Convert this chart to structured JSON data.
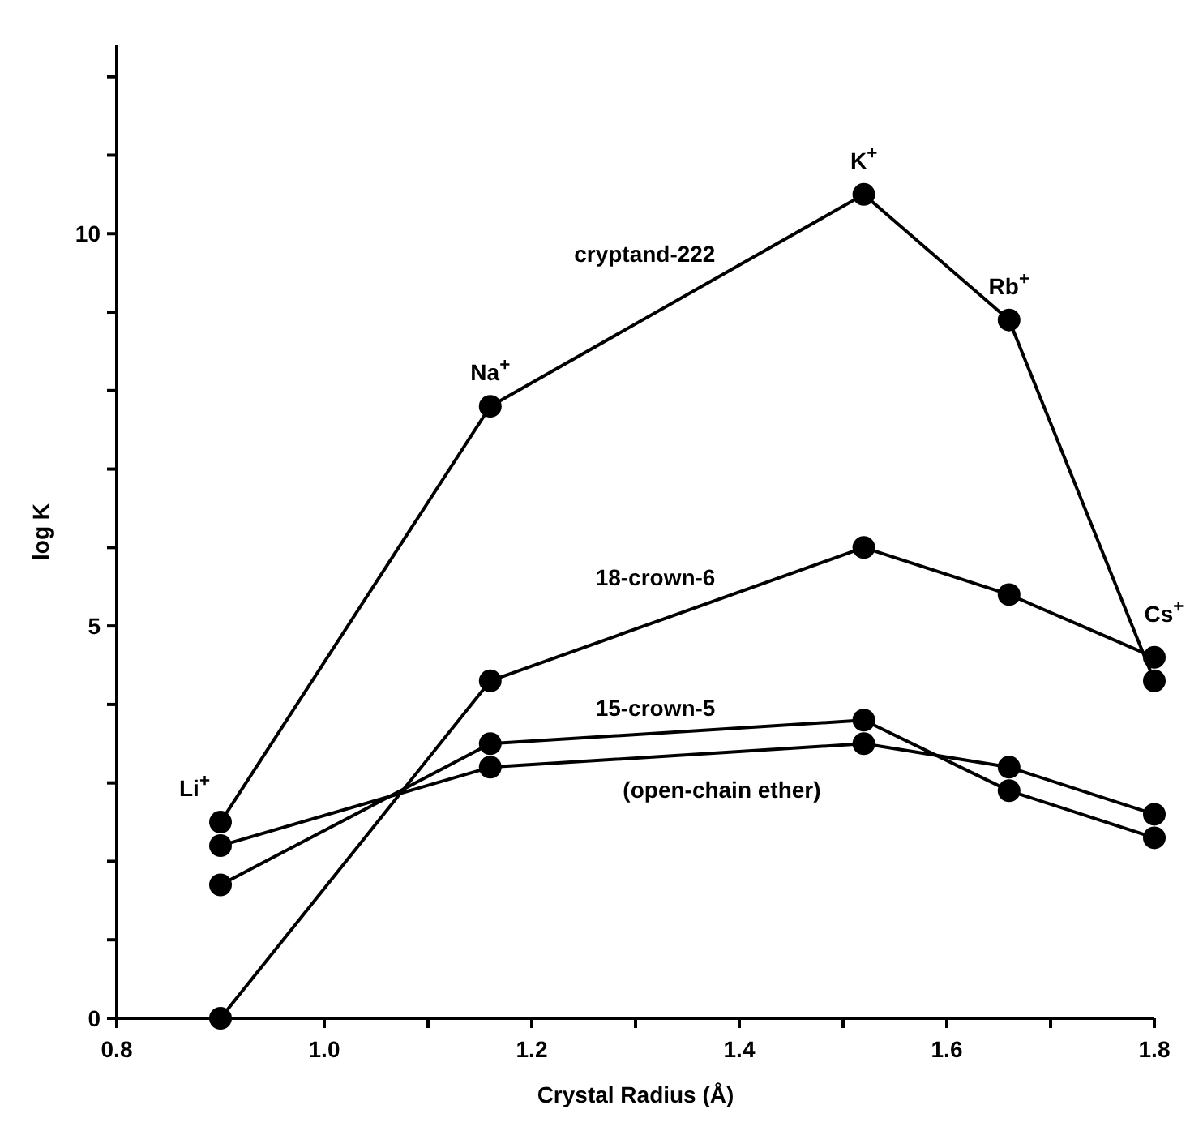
{
  "chart_data": {
    "type": "line",
    "xlabel": "Crystal Radius (Å)",
    "ylabel": "log K",
    "xlim": [
      0.8,
      1.8
    ],
    "ylim": [
      0,
      12.4
    ],
    "xticks": [
      0.8,
      {
        "value": 0.9,
        "label": null
      },
      {
        "value": 1,
        "label": "1.0"
      },
      {
        "value": 1.1,
        "label": null
      },
      1.2,
      {
        "value": 1.3,
        "label": null
      },
      1.4,
      {
        "value": 1.5,
        "label": null
      },
      1.6,
      {
        "value": 1.7,
        "label": null
      },
      1.8
    ],
    "yticks": [
      0,
      {
        "value": 1,
        "label": null
      },
      {
        "value": 2,
        "label": null
      },
      {
        "value": 3,
        "label": null
      },
      {
        "value": 4,
        "label": null
      },
      5,
      {
        "value": 6,
        "label": null
      },
      {
        "value": 7,
        "label": null
      },
      {
        "value": 8,
        "label": null
      },
      {
        "value": 9,
        "label": null
      },
      10,
      {
        "value": 11,
        "label": null
      },
      {
        "value": 12,
        "label": null
      }
    ],
    "x": [
      0.9,
      1.16,
      1.52,
      1.66,
      1.8
    ],
    "marker": "circle",
    "grid": false,
    "series": [
      {
        "name": "cryptand-222",
        "color": "#000000",
        "values": [
          2.5,
          7.8,
          10.5,
          8.9,
          4.3
        ]
      },
      {
        "name": "18-crown-6",
        "color": "#000000",
        "values": [
          0,
          4.3,
          6,
          5.4,
          4.6
        ]
      },
      {
        "name": "15-crown-5",
        "color": "#000000",
        "values": [
          1.7,
          3.5,
          3.8,
          2.9,
          2.3
        ]
      },
      {
        "name": "(open-chain ether)",
        "color": "#000000",
        "values": [
          2.2,
          3.2,
          3.5,
          3.2,
          2.6
        ]
      }
    ],
    "annotations": [
      {
        "text": "Li$^{+}$",
        "x": 0.9,
        "y": 2.5
      },
      {
        "text": "Na$^{+}$",
        "x": 1.16,
        "y": 7.8
      },
      {
        "text": "K$^{+}$",
        "x": 1.52,
        "y": 10.5
      },
      {
        "text": "Rb$^{+}$",
        "x": 1.66,
        "y": 8.9
      },
      {
        "text": "Cs$^{+}$",
        "x": 1.8,
        "y": 4.6
      }
    ]
  }
}
